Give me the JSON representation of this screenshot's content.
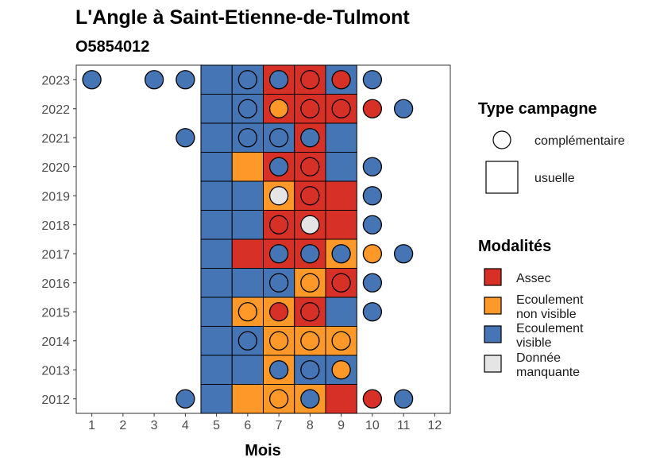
{
  "chart_data": {
    "type": "heatmap",
    "title": "L'Angle à Saint-Etienne-de-Tulmont",
    "subtitle": "O5854012",
    "xlabel": "Mois",
    "ylabel": "",
    "x_ticks": [
      "1",
      "2",
      "3",
      "4",
      "5",
      "6",
      "7",
      "8",
      "9",
      "10",
      "11",
      "12"
    ],
    "y_ticks": [
      "2023",
      "2022",
      "2021",
      "2020",
      "2019",
      "2018",
      "2017",
      "2016",
      "2015",
      "2014",
      "2013",
      "2012"
    ],
    "xlim": [
      0.5,
      12.5
    ],
    "grid": false,
    "modalites": {
      "A": {
        "label": "Assec",
        "color": "#d73027"
      },
      "E": {
        "label": "Ecoulement\nnon visible",
        "color": "#fe9929"
      },
      "V": {
        "label": "Ecoulement\nvisible",
        "color": "#4575b4"
      },
      "M": {
        "label": "Donnée\nmanquante",
        "color": "#e5e5e5"
      }
    },
    "campagne_legend": {
      "title": "Type campagne",
      "complementaire": "complémentaire",
      "usuelle": "usuelle"
    },
    "modalites_title": "Modalités",
    "modalites_order": [
      "A",
      "E",
      "V",
      "M"
    ],
    "usuelle": [
      {
        "year": "2023",
        "values": [
          "V",
          "V",
          "A",
          "A",
          "V"
        ]
      },
      {
        "year": "2022",
        "values": [
          "V",
          "V",
          "A",
          "A",
          "A"
        ]
      },
      {
        "year": "2021",
        "values": [
          "V",
          "V",
          "V",
          "A",
          "V"
        ]
      },
      {
        "year": "2020",
        "values": [
          "V",
          "E",
          "A",
          "A",
          "V"
        ]
      },
      {
        "year": "2019",
        "values": [
          "V",
          "V",
          "E",
          "A",
          "A"
        ]
      },
      {
        "year": "2018",
        "values": [
          "V",
          "V",
          "A",
          "A",
          "A"
        ]
      },
      {
        "year": "2017",
        "values": [
          "V",
          "A",
          "A",
          "A",
          "E"
        ]
      },
      {
        "year": "2016",
        "values": [
          "V",
          "V",
          "V",
          "E",
          "A"
        ]
      },
      {
        "year": "2015",
        "values": [
          "V",
          "E",
          "E",
          "A",
          "V"
        ]
      },
      {
        "year": "2014",
        "values": [
          "V",
          "V",
          "E",
          "E",
          "E"
        ]
      },
      {
        "year": "2013",
        "values": [
          "V",
          "V",
          "E",
          "V",
          "V"
        ]
      },
      {
        "year": "2012",
        "values": [
          "V",
          "E",
          "E",
          "E",
          "A"
        ]
      }
    ],
    "usuelle_months": [
      5,
      6,
      7,
      8,
      9
    ],
    "complementaire": [
      {
        "year": "2023",
        "month": 1,
        "v": "V"
      },
      {
        "year": "2023",
        "month": 3,
        "v": "V"
      },
      {
        "year": "2023",
        "month": 4,
        "v": "V"
      },
      {
        "year": "2023",
        "month": 6,
        "v": "V"
      },
      {
        "year": "2023",
        "month": 7,
        "v": "V"
      },
      {
        "year": "2023",
        "month": 8,
        "v": "A"
      },
      {
        "year": "2023",
        "month": 9,
        "v": "A"
      },
      {
        "year": "2023",
        "month": 10,
        "v": "V"
      },
      {
        "year": "2022",
        "month": 6,
        "v": "V"
      },
      {
        "year": "2022",
        "month": 7,
        "v": "E"
      },
      {
        "year": "2022",
        "month": 8,
        "v": "A"
      },
      {
        "year": "2022",
        "month": 9,
        "v": "A"
      },
      {
        "year": "2022",
        "month": 10,
        "v": "A"
      },
      {
        "year": "2022",
        "month": 11,
        "v": "V"
      },
      {
        "year": "2021",
        "month": 4,
        "v": "V"
      },
      {
        "year": "2021",
        "month": 6,
        "v": "V"
      },
      {
        "year": "2021",
        "month": 7,
        "v": "V"
      },
      {
        "year": "2021",
        "month": 8,
        "v": "V"
      },
      {
        "year": "2020",
        "month": 7,
        "v": "V"
      },
      {
        "year": "2020",
        "month": 8,
        "v": "A"
      },
      {
        "year": "2020",
        "month": 10,
        "v": "V"
      },
      {
        "year": "2019",
        "month": 7,
        "v": "M"
      },
      {
        "year": "2019",
        "month": 8,
        "v": "A"
      },
      {
        "year": "2019",
        "month": 10,
        "v": "V"
      },
      {
        "year": "2018",
        "month": 7,
        "v": "A"
      },
      {
        "year": "2018",
        "month": 8,
        "v": "M"
      },
      {
        "year": "2018",
        "month": 10,
        "v": "V"
      },
      {
        "year": "2017",
        "month": 7,
        "v": "V"
      },
      {
        "year": "2017",
        "month": 8,
        "v": "V"
      },
      {
        "year": "2017",
        "month": 9,
        "v": "V"
      },
      {
        "year": "2017",
        "month": 10,
        "v": "E"
      },
      {
        "year": "2017",
        "month": 11,
        "v": "V"
      },
      {
        "year": "2016",
        "month": 7,
        "v": "V"
      },
      {
        "year": "2016",
        "month": 8,
        "v": "E"
      },
      {
        "year": "2016",
        "month": 9,
        "v": "A"
      },
      {
        "year": "2016",
        "month": 10,
        "v": "V"
      },
      {
        "year": "2015",
        "month": 6,
        "v": "E"
      },
      {
        "year": "2015",
        "month": 7,
        "v": "A"
      },
      {
        "year": "2015",
        "month": 8,
        "v": "A"
      },
      {
        "year": "2015",
        "month": 10,
        "v": "V"
      },
      {
        "year": "2014",
        "month": 6,
        "v": "V"
      },
      {
        "year": "2014",
        "month": 7,
        "v": "E"
      },
      {
        "year": "2014",
        "month": 8,
        "v": "E"
      },
      {
        "year": "2014",
        "month": 9,
        "v": "E"
      },
      {
        "year": "2013",
        "month": 7,
        "v": "V"
      },
      {
        "year": "2013",
        "month": 8,
        "v": "V"
      },
      {
        "year": "2013",
        "month": 9,
        "v": "E"
      },
      {
        "year": "2012",
        "month": 4,
        "v": "V"
      },
      {
        "year": "2012",
        "month": 7,
        "v": "E"
      },
      {
        "year": "2012",
        "month": 8,
        "v": "V"
      },
      {
        "year": "2012",
        "month": 10,
        "v": "A"
      },
      {
        "year": "2012",
        "month": 11,
        "v": "V"
      }
    ]
  }
}
